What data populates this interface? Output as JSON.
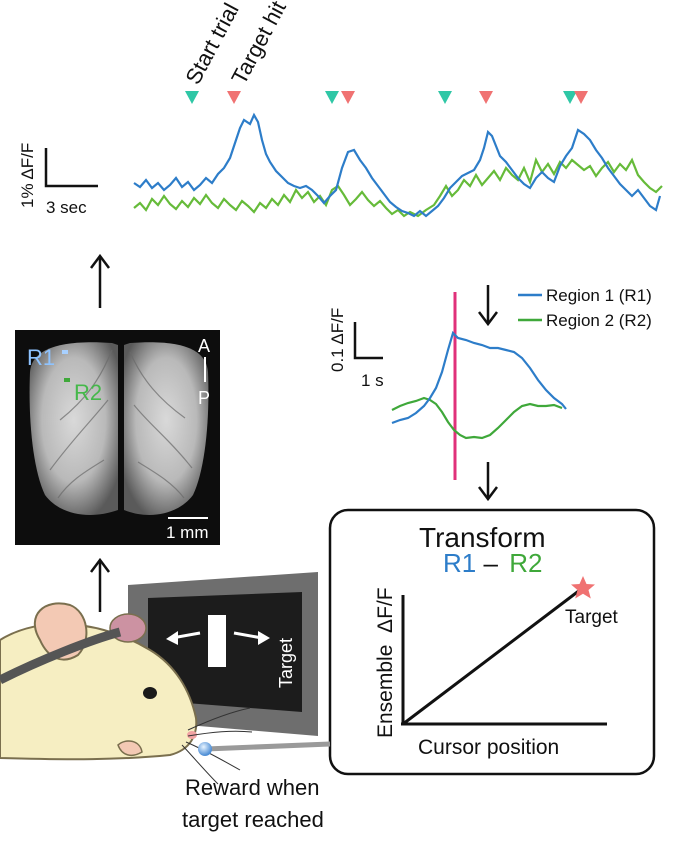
{
  "trace_panel": {
    "marker_start": "Start trial",
    "marker_hit": "Target hit",
    "scale_y": "1% ΔF/F",
    "scale_x": "3 sec",
    "colors": {
      "start_marker": "#2fc7a6",
      "hit_marker": "#f07272",
      "region1": "#2d7dc9",
      "region2": "#66bb3a"
    }
  },
  "brain_image": {
    "label_r1": "R1",
    "label_r2": "R2",
    "orient_a": "A",
    "orient_p": "P",
    "scale_bar": "1 mm"
  },
  "average_panel": {
    "scale_y": "0.1 ΔF/F",
    "scale_x": "1 s",
    "legend_r1": "Region 1 (R1)",
    "legend_r2": "Region 2 (R2)",
    "colors": {
      "onset_line": "#e0317a"
    }
  },
  "transform_box": {
    "title": "Transform",
    "r1": "R1",
    "minus": "–",
    "r2": "R2",
    "y_axis": "Ensemble  ΔF/F",
    "x_axis": "Cursor position",
    "target": "Target",
    "colors": {
      "target_star": "#f07272"
    }
  },
  "screen": {
    "target_label": "Target"
  },
  "reward_caption": {
    "line1": "Reward when",
    "line2": "target reached"
  }
}
